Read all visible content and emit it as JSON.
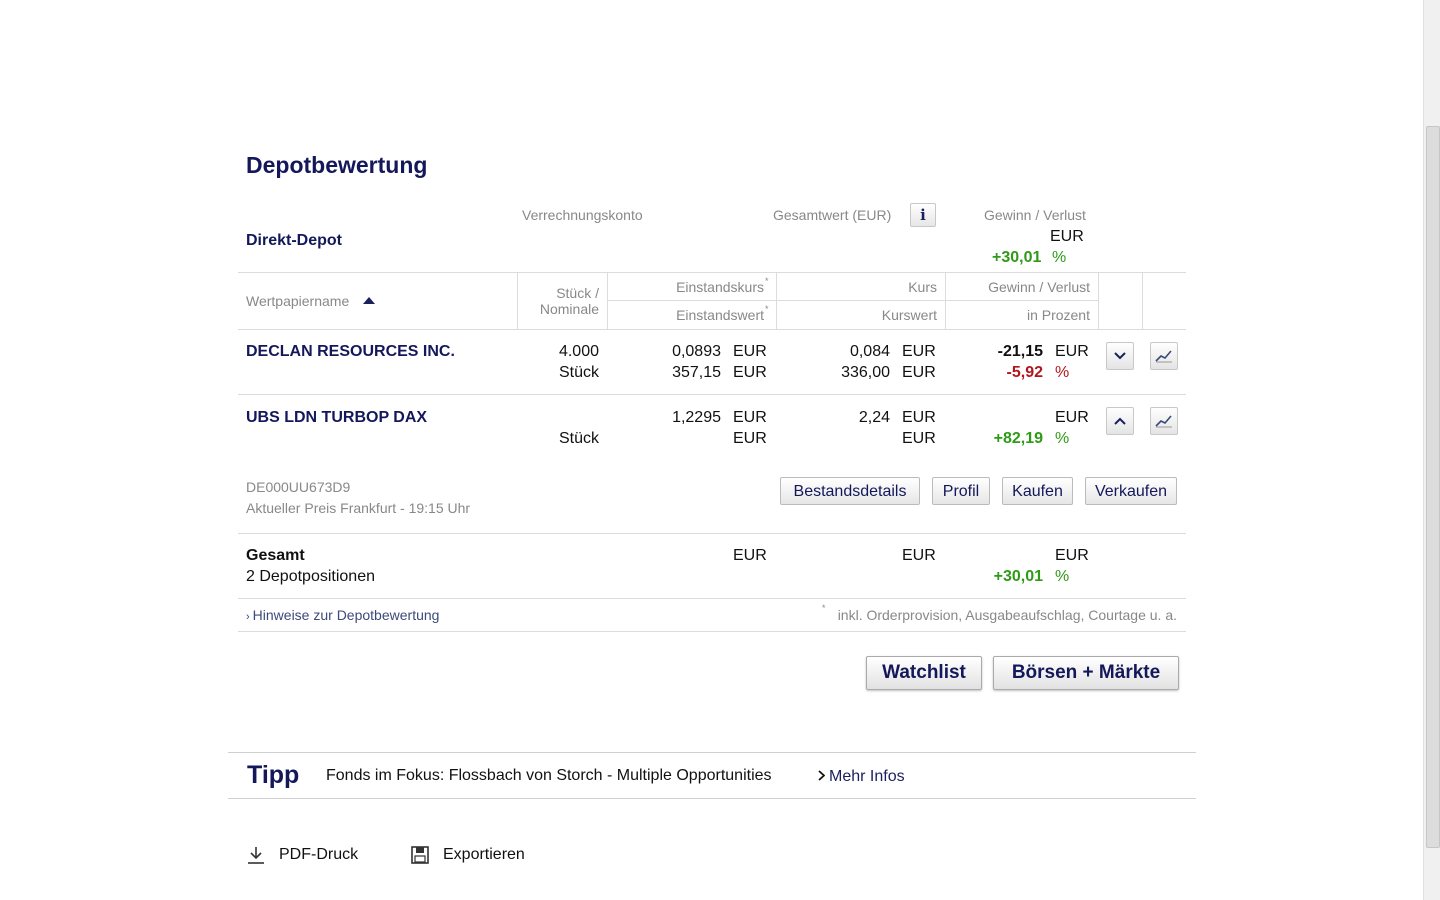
{
  "page": {
    "title": "Depotbewertung"
  },
  "summary": {
    "depot_name": "Direkt-Depot",
    "verrechnungskonto_label": "Verrechnungskonto",
    "gesamtwert_label": "Gesamtwert (EUR)",
    "info_icon": "info-icon",
    "gv_label": "Gewinn / Verlust",
    "gv_currency": "EUR",
    "gv_percent": "+30,01",
    "percent_sign": "%"
  },
  "table": {
    "headers": {
      "name": "Wertpapiername",
      "stueck_line1": "Stück /",
      "stueck_line2": "Nominale",
      "einstandskurs": "Einstandskurs",
      "einstandswert": "Einstandswert",
      "kurs": "Kurs",
      "kurswert": "Kurswert",
      "gv": "Gewinn / Verlust",
      "in_prozent": "in Prozent",
      "asterisk": "*"
    },
    "rows": [
      {
        "name": "DECLAN RESOURCES INC.",
        "stueck": "4.000",
        "stueck_unit": "Stück",
        "einstandskurs": "0,0893",
        "einstandswert": "357,15",
        "currency": "EUR",
        "kurs": "0,084",
        "kurswert": "336,00",
        "gv_value": "-21,15",
        "gv_percent": "-5,92",
        "percent_sign": "%",
        "toggle_icon": "chevron-down-icon",
        "chart_icon": "chart-icon"
      },
      {
        "name": "UBS LDN TURBOP DAX",
        "stueck_unit": "Stück",
        "einstandskurs": "1,2295",
        "currency": "EUR",
        "kurs": "2,24",
        "gv_value": "",
        "gv_percent": "+82,19",
        "percent_sign": "%",
        "toggle_icon": "chevron-up-icon",
        "chart_icon": "chart-icon",
        "isin": "DE000UU673D9",
        "price_info": "Aktueller Preis Frankfurt - 19:15 Uhr",
        "actions": {
          "bestandsdetails": "Bestandsdetails",
          "profil": "Profil",
          "kaufen": "Kaufen",
          "verkaufen": "Verkaufen"
        }
      }
    ],
    "total": {
      "label": "Gesamt",
      "positions": "2 Depotpositionen",
      "currency": "EUR",
      "gv_percent": "+30,01",
      "percent_sign": "%"
    }
  },
  "notes": {
    "hinweise_link": "Hinweise zur Depotbewertung",
    "footnote_mark": "*",
    "footnote": "inkl. Orderprovision, Ausgabeaufschlag, Courtage u. a."
  },
  "nav_buttons": {
    "watchlist": "Watchlist",
    "boersen": "Börsen + Märkte"
  },
  "tipp": {
    "title": "Tipp",
    "text": "Fonds im Fokus: Flossbach von Storch - Multiple Opportunities",
    "link": "Mehr Infos"
  },
  "footer": {
    "pdf": "PDF-Druck",
    "export": "Exportieren",
    "pdf_icon": "download-icon",
    "export_icon": "save-icon"
  }
}
